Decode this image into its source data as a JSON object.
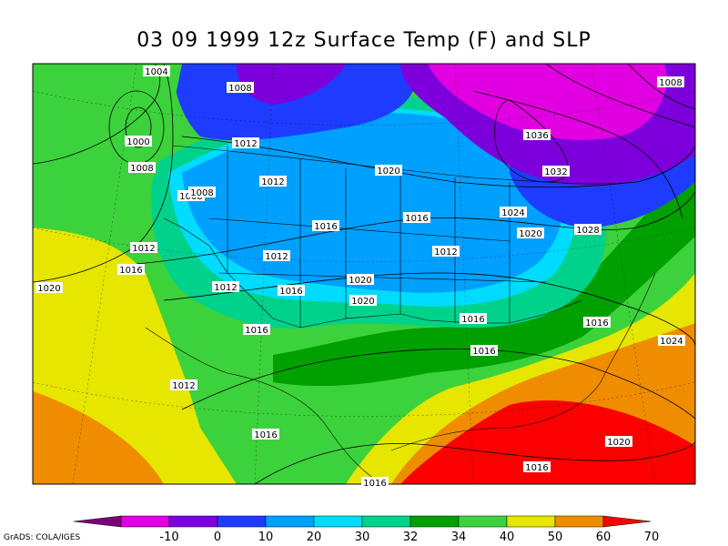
{
  "title": "03 09 1999 12z Surface Temp (F) and SLP",
  "credit": "GrADS: COLA/IGES",
  "colorbar": {
    "labels": [
      "-10",
      "0",
      "10",
      "20",
      "30",
      "32",
      "34",
      "40",
      "50",
      "60",
      "70"
    ],
    "colors": {
      "below": "#7a007a",
      "c1": "#e100e1",
      "c2": "#7d00dc",
      "c3": "#1e3cff",
      "c4": "#00a0ff",
      "c5": "#00dcff",
      "c6": "#00d28c",
      "c7": "#00a000",
      "c8": "#3cd23c",
      "c9": "#e6e600",
      "c10": "#f08c00",
      "above": "#fa0000"
    }
  },
  "isobars": [
    {
      "value": "1004"
    },
    {
      "value": "1008"
    },
    {
      "value": "1000"
    },
    {
      "value": "1008"
    },
    {
      "value": "1012"
    },
    {
      "value": "1012"
    },
    {
      "value": "1020"
    },
    {
      "value": "1036"
    },
    {
      "value": "1032"
    },
    {
      "value": "1008"
    },
    {
      "value": "1008"
    },
    {
      "value": "1008"
    },
    {
      "value": "1016"
    },
    {
      "value": "1016"
    },
    {
      "value": "1024"
    },
    {
      "value": "1020"
    },
    {
      "value": "1028"
    },
    {
      "value": "1012"
    },
    {
      "value": "1012"
    },
    {
      "value": "1012"
    },
    {
      "value": "1016"
    },
    {
      "value": "1020"
    },
    {
      "value": "1020"
    },
    {
      "value": "1012"
    },
    {
      "value": "1016"
    },
    {
      "value": "1020"
    },
    {
      "value": "1016"
    },
    {
      "value": "1016"
    },
    {
      "value": "1016"
    },
    {
      "value": "1020"
    },
    {
      "value": "1016"
    },
    {
      "value": "1024"
    },
    {
      "value": "1012"
    },
    {
      "value": "1016"
    },
    {
      "value": "1016"
    },
    {
      "value": "1016"
    }
  ]
}
